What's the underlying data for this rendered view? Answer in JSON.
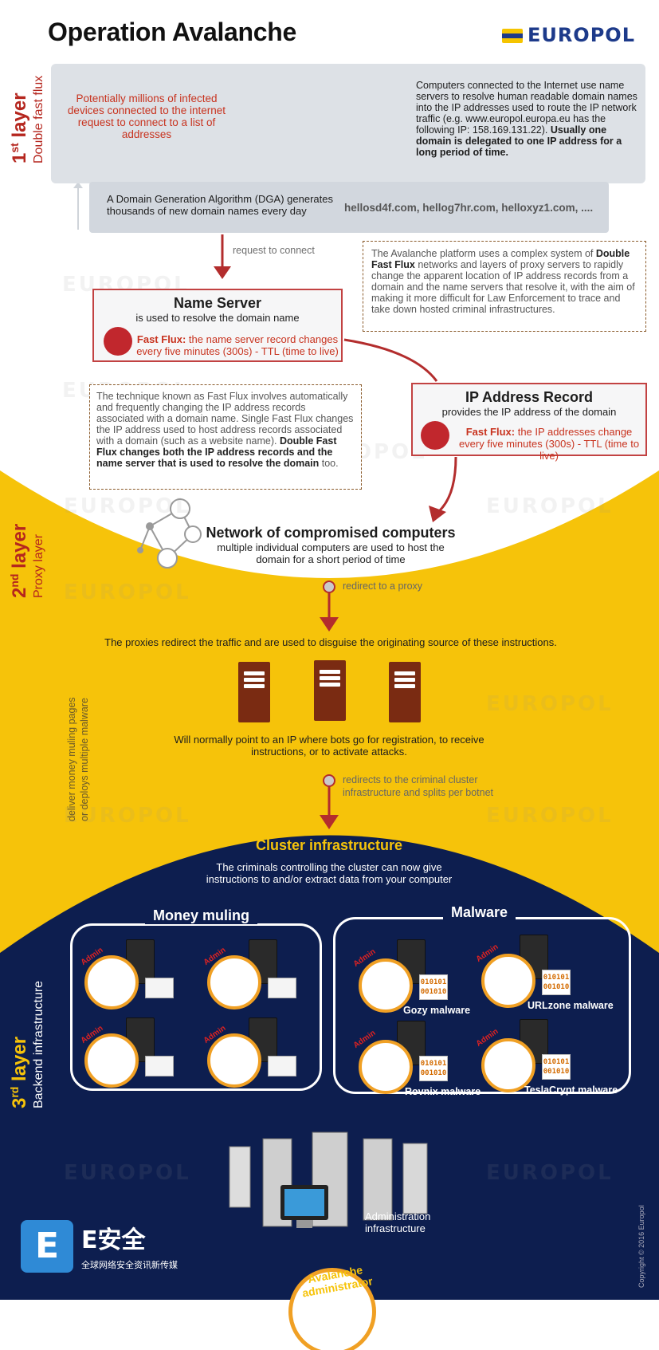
{
  "header": {
    "title": "Operation Avalanche",
    "logo_text": "EUROPOL"
  },
  "watermark_text": "EUROPOL",
  "layers": {
    "first": {
      "num": "1",
      "sup": "st",
      "word": "layer",
      "name": "Double fast flux"
    },
    "second": {
      "num": "2",
      "sup": "nd",
      "word": "layer",
      "name": "Proxy layer"
    },
    "third": {
      "num": "3",
      "sup": "rd",
      "word": "layer",
      "name": "Backend infrastructure"
    }
  },
  "layer1": {
    "infected_text": "Potentially millions of infected devices connected to the internet request to connect to a list of addresses",
    "dns_text_normal": "Computers connected to the Internet use name servers to resolve human readable domain names into the IP addresses used to route the IP network traffic (e.g. www.europol.europa.eu has the following IP: 158.169.131.22).",
    "dns_text_bold": "Usually one domain is delegated to one IP address for a long period of time.",
    "dga_text": "A Domain Generation Algorithm (DGA) generates thousands of new domain names every day",
    "dga_domains": "hellosd4f.com, hellog7hr.com, helloxyz1.com, ....",
    "request_label": "request to connect",
    "platform_note": {
      "t1": "The Avalanche platform uses a complex system of ",
      "b1": "Double Fast Flux",
      "t2": " networks and layers of proxy servers to rapidly change the apparent location of IP address records from a domain and the name servers that resolve it, with the aim of making it more difficult for Law Enforcement to trace and take down hosted criminal infrastructures."
    },
    "name_server": {
      "title": "Name Server",
      "subtitle": "is used to resolve the domain name",
      "ff_label": "Fast Flux:",
      "ff_text": " the name server record changes every five minutes (300s) - TTL (time to live)"
    },
    "fastflux_note": {
      "t1": "The technique known as Fast Flux involves automatically and frequently changing the IP address records associated with a domain name. Single Fast Flux changes the IP address used to host address records associated with a domain (such as a website name). ",
      "b1": "Double Fast Flux changes both the IP address records and the name server that is used to resolve the domain",
      "t2": " too."
    },
    "ip_record": {
      "title": "IP Address Record",
      "subtitle": "provides the IP address of the domain",
      "ff_label": "Fast Flux:",
      "ff_text": " the IP addresses change every five minutes (300s) - TTL (time to live)"
    }
  },
  "layer2": {
    "network_title": "Network of compromised computers",
    "network_sub": "multiple individual computers are used to host the domain for a short period of time",
    "redirect_label": "redirect to a proxy",
    "proxies_text": "The proxies redirect the traffic and are used to disguise the originating source of these instructions.",
    "bots_text": "Will normally point to an IP where bots go for registration, to receive instructions, or to activate attacks.",
    "side_note_1": "deliver money muling pages",
    "side_note_2": "or deploys multiple malware",
    "redirects_label_1": "redirects to the criminal cluster",
    "redirects_label_2": "infrastructure and splits per botnet"
  },
  "layer3": {
    "cluster_title": "Cluster infrastructure",
    "cluster_sub": "The criminals controlling the cluster can now give instructions to and/or extract data from your computer",
    "money_muling": "Money muling",
    "malware": "Malware",
    "admin_tag": "Admin",
    "code_text": "010101 001010",
    "malware_names": [
      "Gozy malware",
      "URLzone malware",
      "Rovnix malware",
      "TeslaCrypt malware"
    ],
    "admin_infra": "Administration infrastructure",
    "avalanche_admin": "Avalanche administrator"
  },
  "footer": {
    "esafe_title": "E安全",
    "esafe_tagline": "全球网络安全资讯新传媒",
    "esafe_letter": "E",
    "copyright": "Copyright © 2016 Europol"
  },
  "colors": {
    "accent_red": "#c24242",
    "yellow": "#f6c30a",
    "navy": "#0d1e4f",
    "proxy_brown": "#7a2b12"
  }
}
